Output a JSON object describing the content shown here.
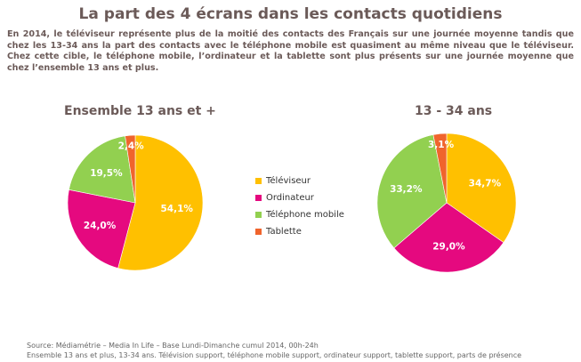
{
  "title": "La part des 4 écrans dans les contacts quotidiens",
  "intro": "En 2014, le téléviseur représente plus de la moitié des contacts des Français sur une journée moyenne tandis que chez les 13-34 ans la part des contacts avec le téléphone mobile est quasiment au même niveau que le téléviseur. Chez cette cible, le téléphone mobile, l’ordinateur et la tablette sont plus présents sur une journée moyenne que chez l’ensemble 13 ans et plus.",
  "chart_data": [
    {
      "type": "pie",
      "title": "Ensemble 13 ans et +",
      "categories": [
        "Téléviseur",
        "Ordinateur",
        "Téléphone mobile",
        "Tablette"
      ],
      "values": [
        54.1,
        24.0,
        19.5,
        2.4
      ],
      "labels": [
        "54,1%",
        "24,0%",
        "19,5%",
        "2,4%"
      ]
    },
    {
      "type": "pie",
      "title": "13 - 34 ans",
      "categories": [
        "Téléviseur",
        "Ordinateur",
        "Téléphone mobile",
        "Tablette"
      ],
      "values": [
        34.7,
        29.0,
        33.2,
        3.1
      ],
      "labels": [
        "34,7%",
        "29,0%",
        "33,2%",
        "3,1%"
      ]
    }
  ],
  "legend": {
    "placement": "center",
    "items": [
      "Téléviseur",
      "Ordinateur",
      "Téléphone mobile",
      "Tablette"
    ]
  },
  "colors": [
    "#FFC000",
    "#E5097F",
    "#92D050",
    "#F0642C"
  ],
  "source": {
    "line1": "Source: Médiamétrie – Media In Life – Base Lundi-Dimanche cumul 2014, 00h-24h",
    "line2": "Ensemble 13 ans et plus, 13-34 ans. Télévision support, téléphone mobile support, ordinateur support, tablette support, parts de présence"
  }
}
